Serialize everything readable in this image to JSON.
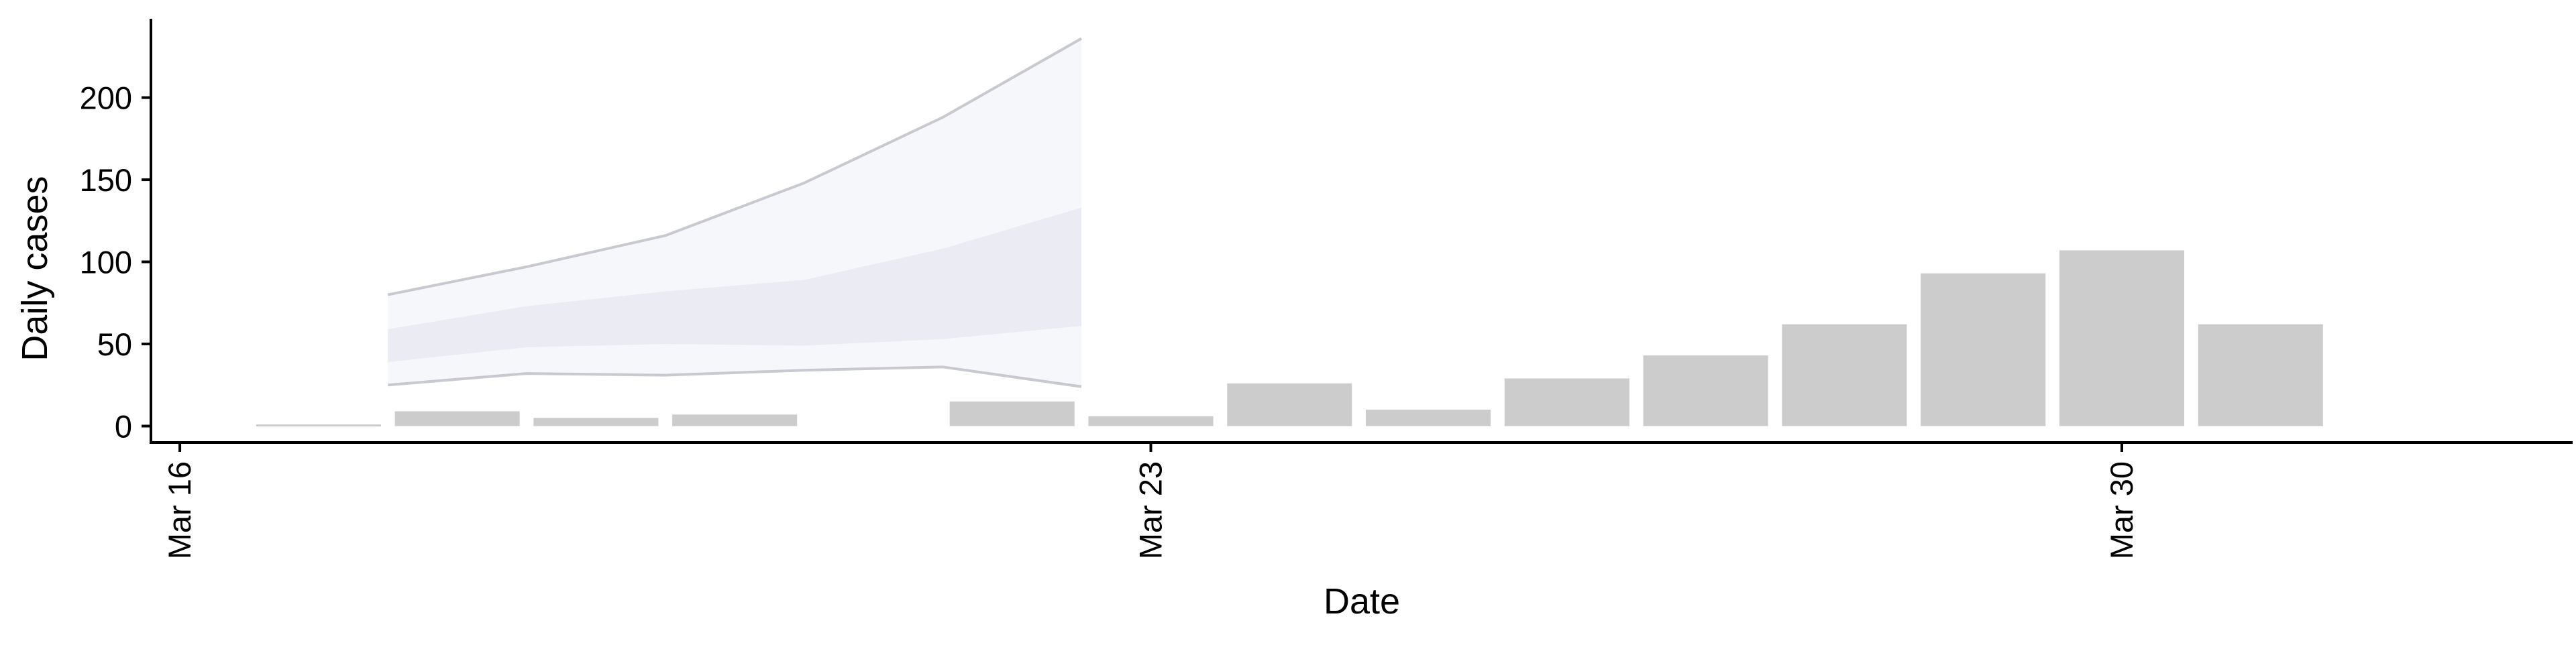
{
  "chart_data": {
    "type": "bar",
    "title": "",
    "xlabel": "Date",
    "ylabel": "Daily cases",
    "xlim": [
      "2020-03-15T19:00",
      "2020-04-02T06:00"
    ],
    "ylim": [
      -10,
      248
    ],
    "x_ticks": [
      {
        "date": "2020-03-16",
        "label": "Mar 16"
      },
      {
        "date": "2020-03-23",
        "label": "Mar 23"
      },
      {
        "date": "2020-03-30",
        "label": "Mar 30"
      }
    ],
    "y_ticks": [
      0,
      50,
      100,
      150,
      200
    ],
    "grid": false,
    "legend": "none",
    "bars": {
      "color": "#cccccc",
      "points": [
        {
          "date": "2020-03-17",
          "value": 1
        },
        {
          "date": "2020-03-18",
          "value": 9
        },
        {
          "date": "2020-03-19",
          "value": 5
        },
        {
          "date": "2020-03-20",
          "value": 7
        },
        {
          "date": "2020-03-22",
          "value": 15
        },
        {
          "date": "2020-03-23",
          "value": 6
        },
        {
          "date": "2020-03-24",
          "value": 26
        },
        {
          "date": "2020-03-25",
          "value": 10
        },
        {
          "date": "2020-03-26",
          "value": 29
        },
        {
          "date": "2020-03-27",
          "value": 43
        },
        {
          "date": "2020-03-28",
          "value": 62
        },
        {
          "date": "2020-03-29",
          "value": 93
        },
        {
          "date": "2020-03-30",
          "value": 107
        },
        {
          "date": "2020-03-31",
          "value": 62
        }
      ]
    },
    "forecast": {
      "color": "#d8dcea",
      "dates": [
        "2020-03-17T12:00",
        "2020-03-18T12:00",
        "2020-03-19T12:00",
        "2020-03-20T12:00",
        "2020-03-21T12:00",
        "2020-03-22T12:00"
      ],
      "outer_lower": [
        25,
        32,
        31,
        34,
        36,
        24
      ],
      "inner_lower": [
        39,
        48,
        50,
        49,
        53,
        61
      ],
      "inner_upper": [
        59,
        73,
        82,
        89,
        108,
        133
      ],
      "outer_upper": [
        80,
        97,
        116,
        148,
        188,
        236
      ]
    }
  }
}
